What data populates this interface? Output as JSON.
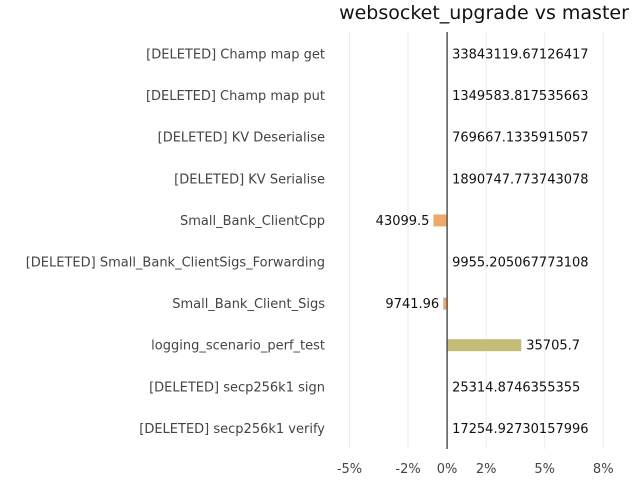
{
  "chart_data": {
    "type": "bar",
    "orientation": "horizontal",
    "title": "websocket_upgrade vs master",
    "xlabel": "",
    "ylabel": "",
    "xlim": [
      -6,
      8.5
    ],
    "x_ticks": [
      -5,
      -2,
      0,
      2,
      5,
      8
    ],
    "x_tick_labels": [
      "-5%",
      "-2%",
      "0%",
      "2%",
      "5%",
      "8%"
    ],
    "grid": true,
    "categories": [
      "[DELETED] Champ map get",
      "[DELETED] Champ map put",
      "[DELETED] KV Deserialise",
      "[DELETED] KV Serialise",
      "Small_Bank_ClientCpp",
      "[DELETED] Small_Bank_ClientSigs_Forwarding",
      "Small_Bank_Client_Sigs",
      "logging_scenario_perf_test",
      "[DELETED] secp256k1 sign",
      "[DELETED] secp256k1 verify"
    ],
    "values": [
      0,
      0,
      0,
      0,
      -0.7,
      0,
      -0.2,
      3.8,
      0,
      0
    ],
    "labels": [
      "33843119.67126417",
      "1349583.817535663",
      "769667.1335915057",
      "1890747.773743078",
      "43099.5",
      "9955.205067773108",
      "9741.96",
      "35705.7",
      "25314.8746355355",
      "17254.92730157996"
    ],
    "colors": [
      "#e377c2",
      "#bcbd22",
      "#17becf",
      "#1f77b4",
      "#f0a868",
      "#2ca02c",
      "#f0a868",
      "#c3bd78",
      "#9467bd",
      "#8c564b"
    ]
  }
}
